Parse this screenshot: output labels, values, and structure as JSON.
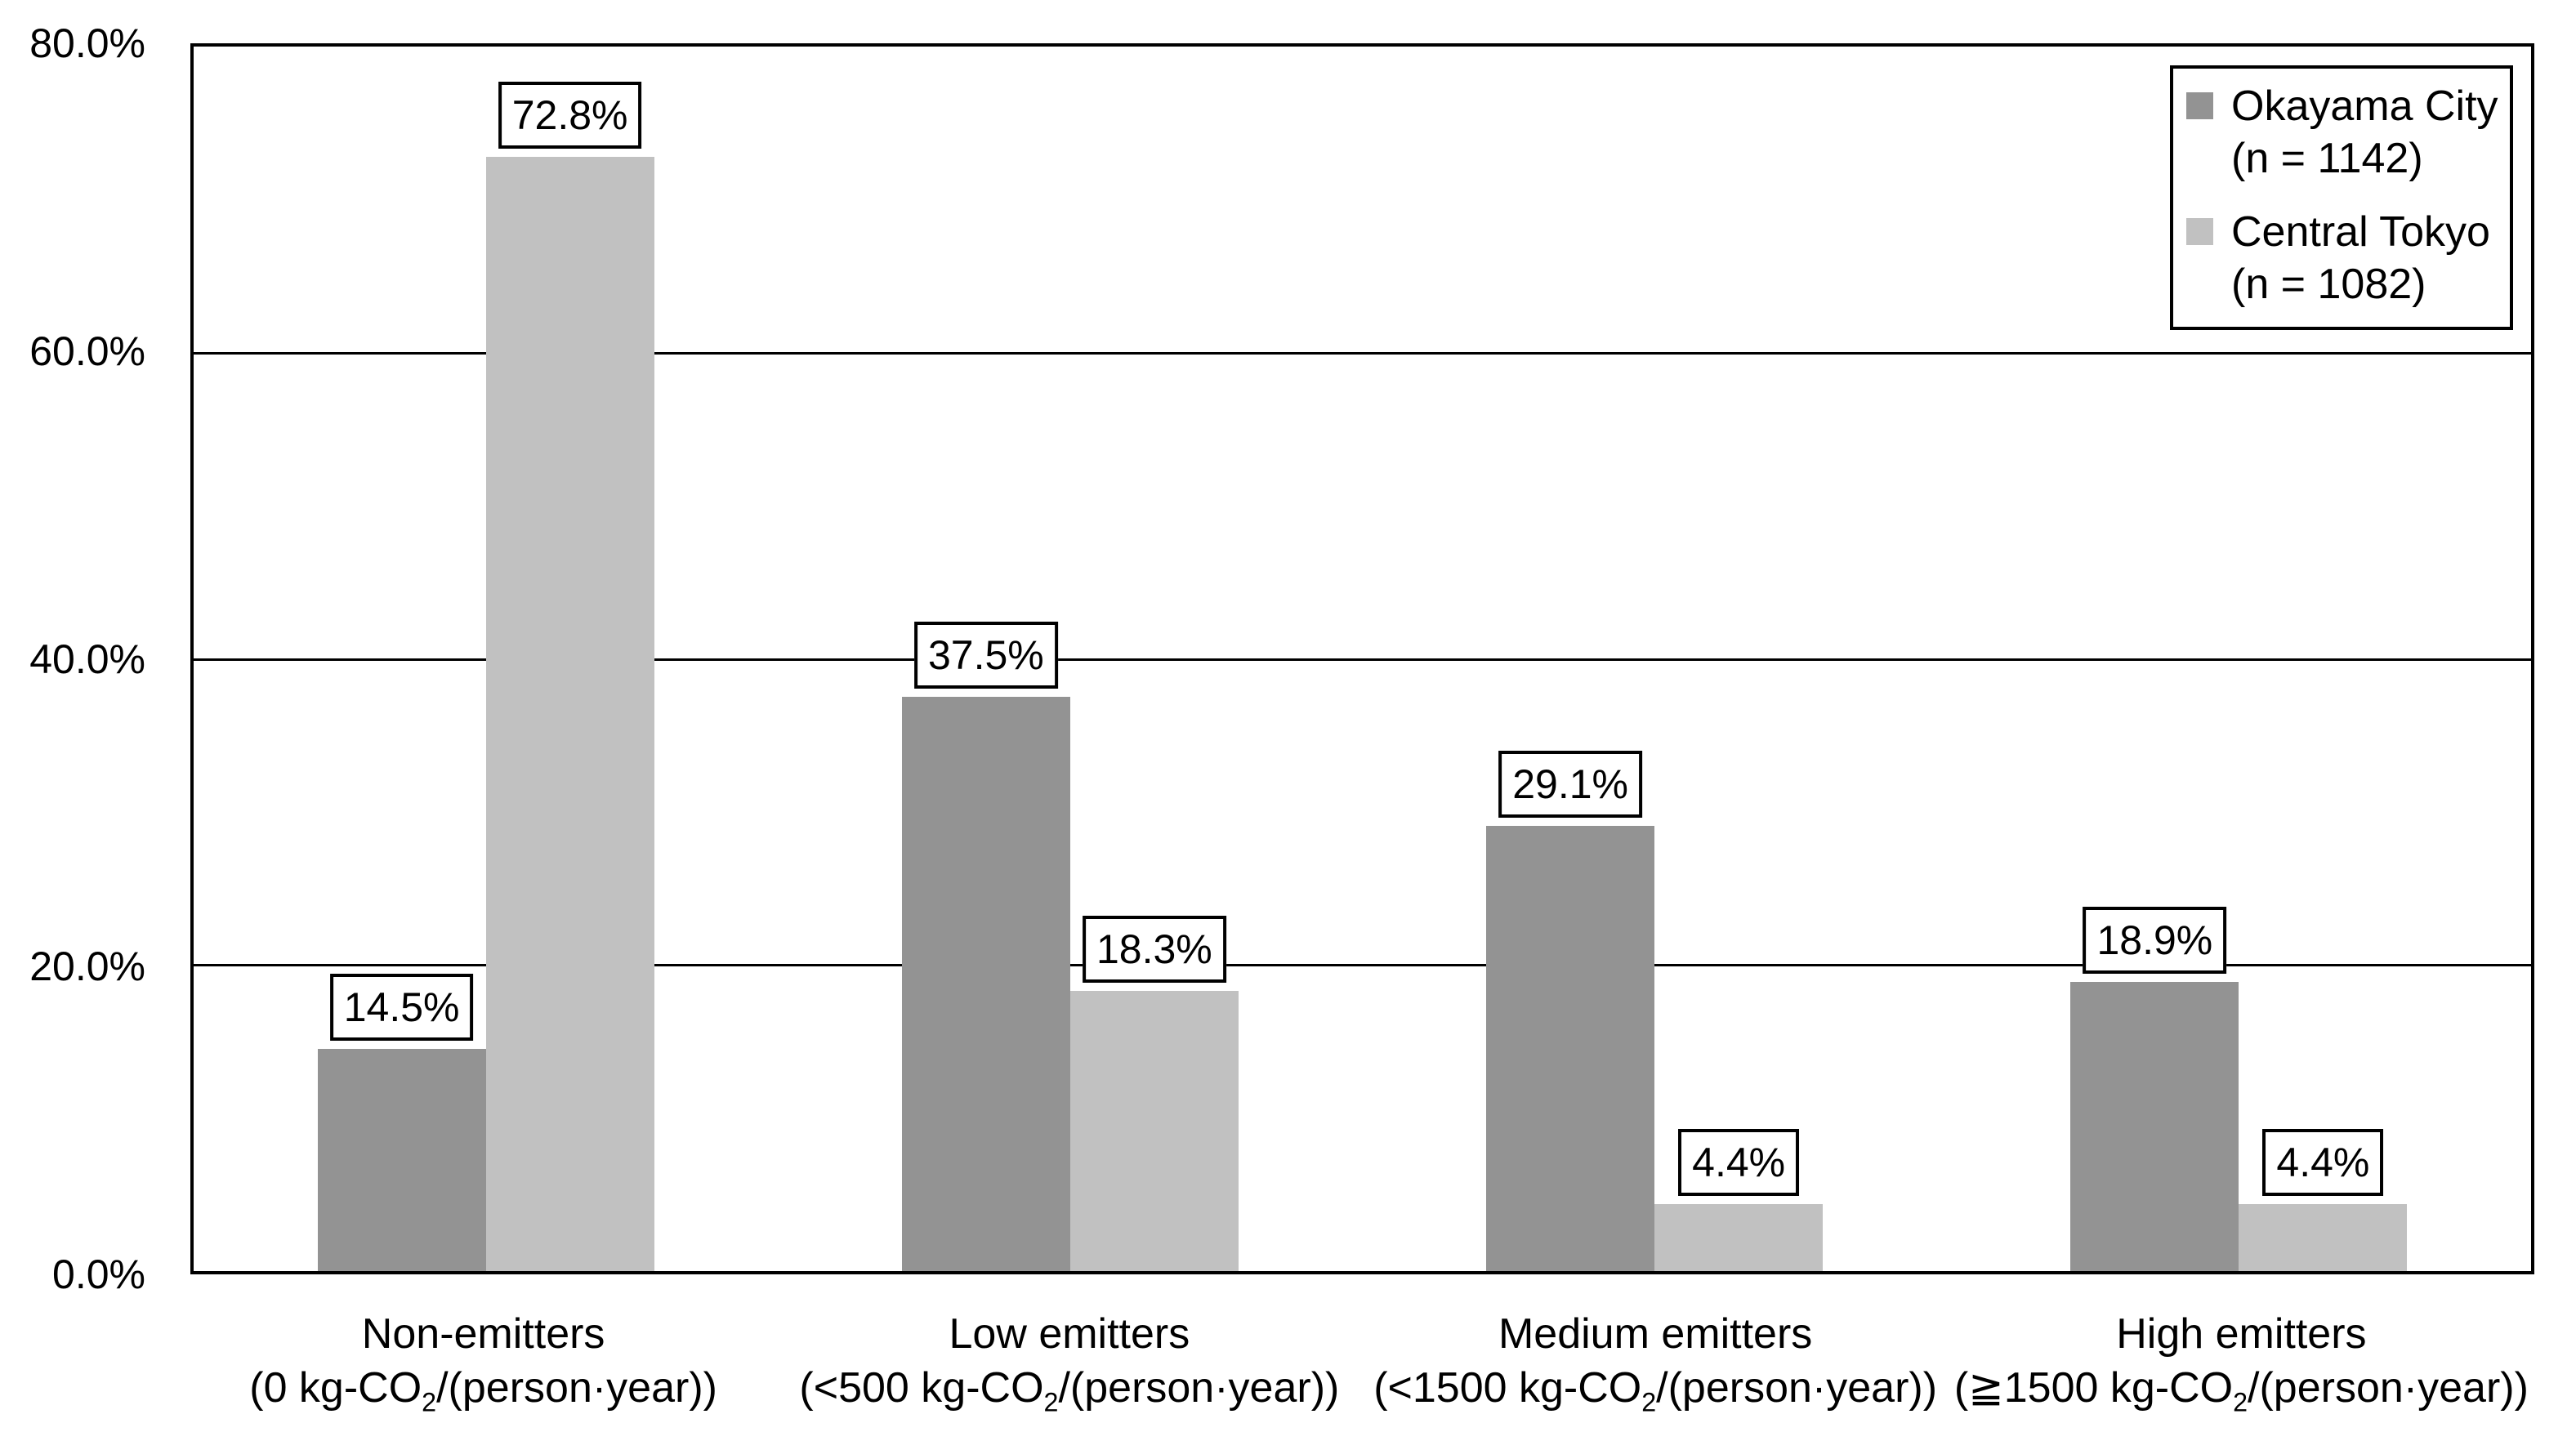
{
  "chart_data": {
    "type": "bar",
    "title": "",
    "xlabel": "",
    "ylabel": "",
    "ylim": [
      0,
      80
    ],
    "grid": "horizontal",
    "legend_position": "top-right",
    "y_ticks": [
      {
        "label": "0.0%",
        "value": 0
      },
      {
        "label": "20.0%",
        "value": 20
      },
      {
        "label": "40.0%",
        "value": 40
      },
      {
        "label": "60.0%",
        "value": 60
      },
      {
        "label": "80.0%",
        "value": 80
      }
    ],
    "categories": [
      {
        "name": "Non-emitters",
        "range_pre": "(0 kg-CO",
        "range_sub": "2",
        "range_post": "/(person·year))"
      },
      {
        "name": "Low emitters",
        "range_pre": "(<500 kg-CO",
        "range_sub": "2",
        "range_post": "/(person·year))"
      },
      {
        "name": "Medium emitters",
        "range_pre": "(<1500 kg-CO",
        "range_sub": "2",
        "range_post": "/(person·year))"
      },
      {
        "name": "High emitters",
        "range_pre": "(≧1500 kg-CO",
        "range_sub": "2",
        "range_post": "/(person·year))"
      }
    ],
    "series": [
      {
        "name": "Okayama City",
        "n_label": "(n = 1142)",
        "color": "#939393",
        "values": [
          14.5,
          37.5,
          29.1,
          18.9
        ],
        "value_labels": [
          "14.5%",
          "37.5%",
          "29.1%",
          "18.9%"
        ]
      },
      {
        "name": "Central Tokyo",
        "n_label": "(n = 1082)",
        "color": "#c1c1c1",
        "values": [
          72.8,
          18.3,
          4.4,
          4.4
        ],
        "value_labels": [
          "72.8%",
          "18.3%",
          "4.4%",
          "4.4%"
        ]
      }
    ],
    "colors": {
      "axis": "#000000",
      "gridline": "#000000",
      "label_box_border": "#000000",
      "background": "#ffffff"
    }
  }
}
